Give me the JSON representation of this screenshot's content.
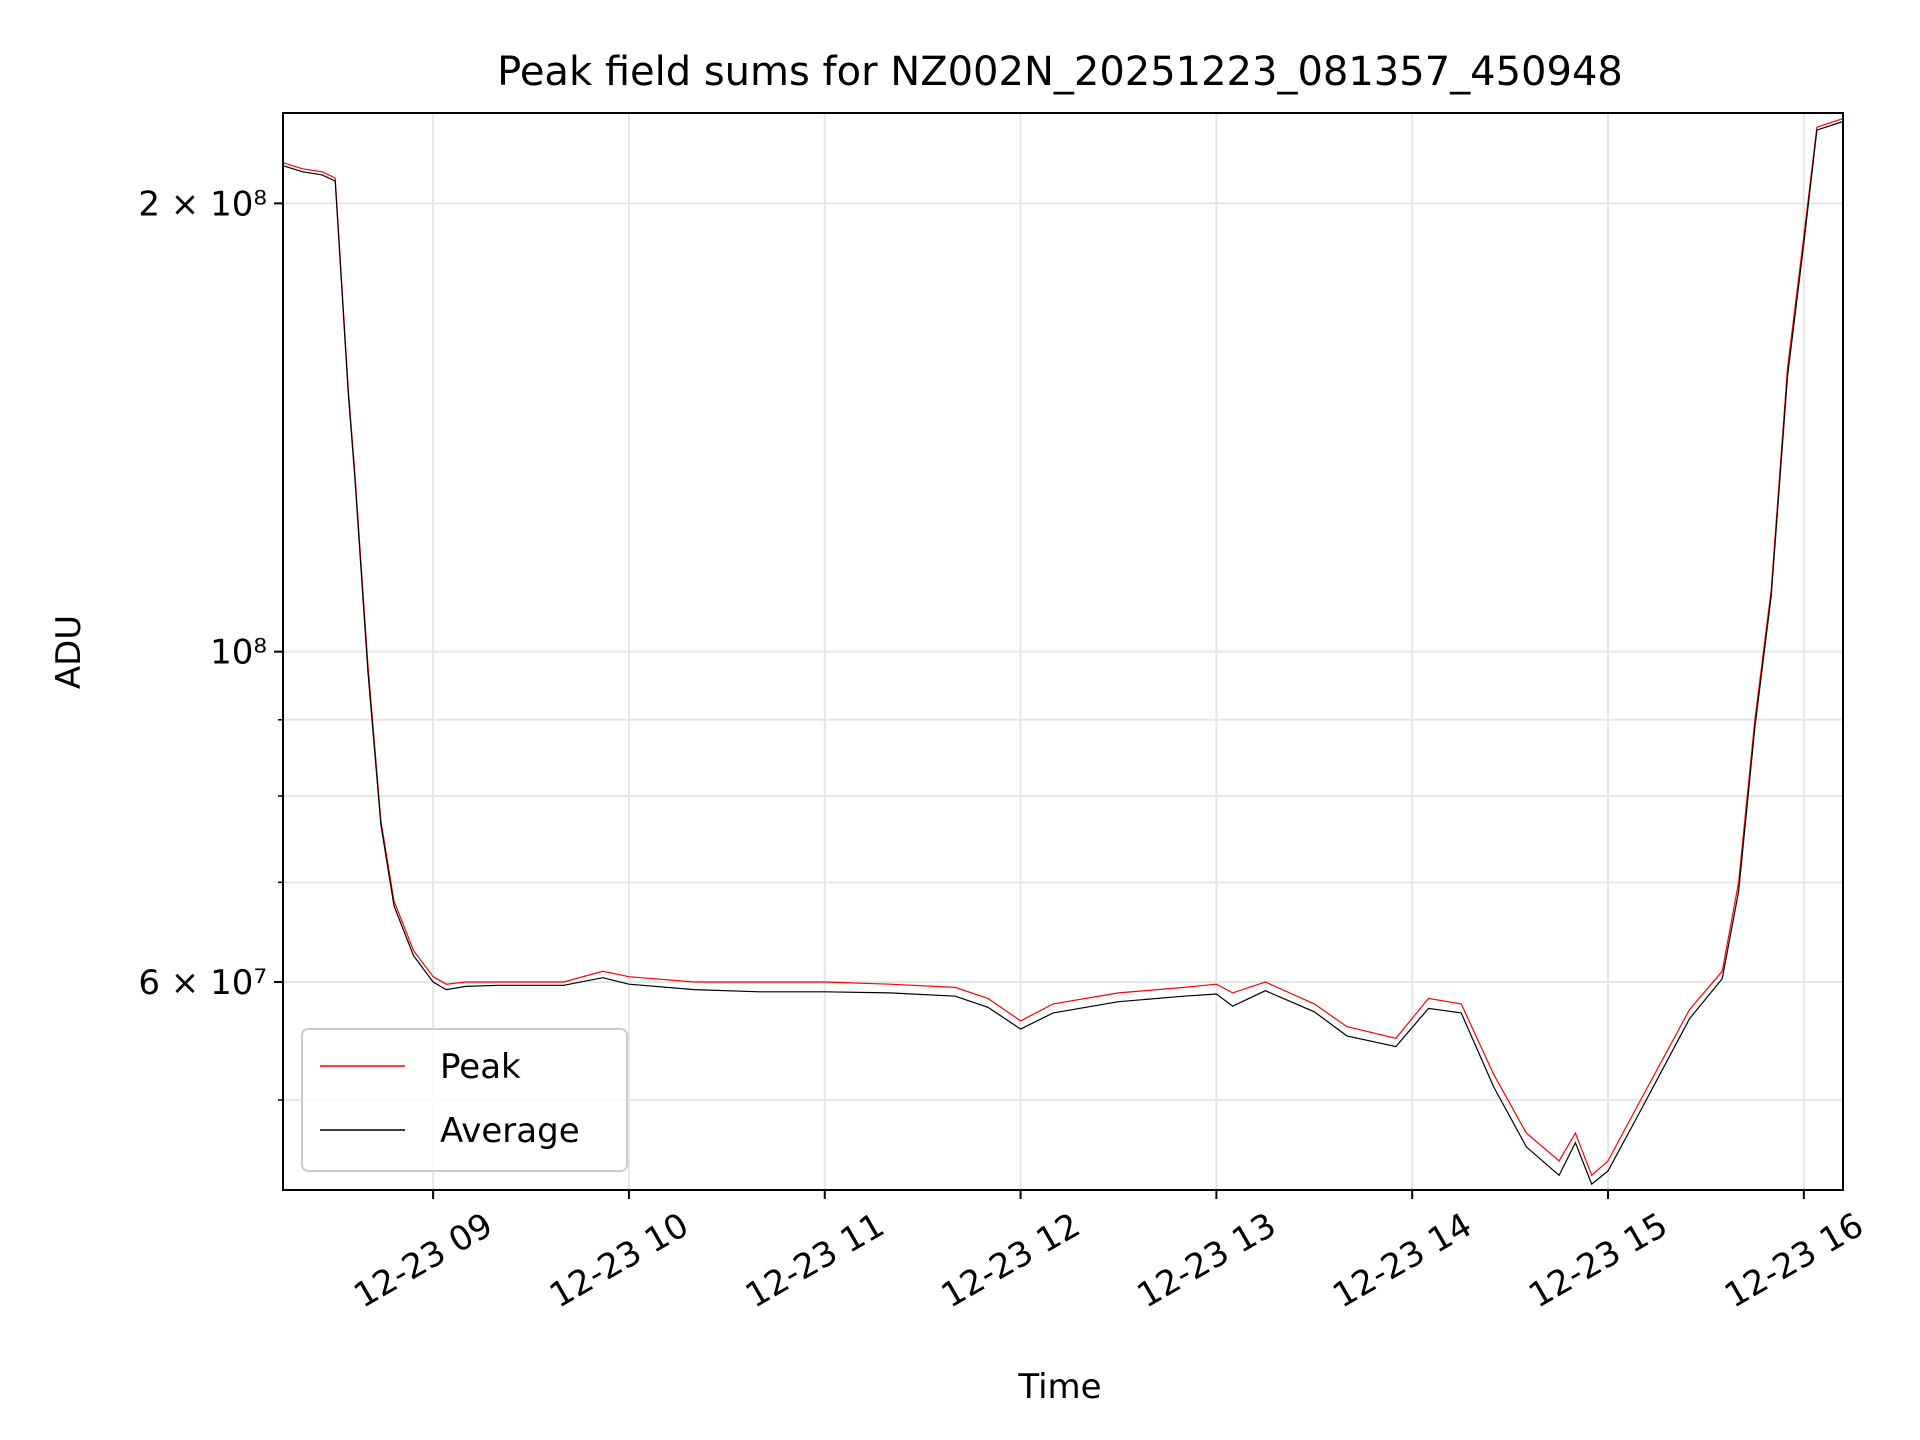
{
  "chart_data": {
    "type": "line",
    "title": "Peak field sums for NZ002N_20251223_081357_450948",
    "xlabel": "Time",
    "ylabel": "ADU",
    "yscale": "log",
    "xlim": [
      "2025-12-23 08:14",
      "2025-12-23 16:12"
    ],
    "ylim": [
      43500000,
      230000000
    ],
    "x_ticks": [
      {
        "label": "12-23 09",
        "value": "2025-12-23 09:00"
      },
      {
        "label": "12-23 10",
        "value": "2025-12-23 10:00"
      },
      {
        "label": "12-23 11",
        "value": "2025-12-23 11:00"
      },
      {
        "label": "12-23 12",
        "value": "2025-12-23 12:00"
      },
      {
        "label": "12-23 13",
        "value": "2025-12-23 13:00"
      },
      {
        "label": "12-23 14",
        "value": "2025-12-23 14:00"
      },
      {
        "label": "12-23 15",
        "value": "2025-12-23 15:00"
      },
      {
        "label": "12-23 16",
        "value": "2025-12-23 16:00"
      }
    ],
    "y_ticks": [
      {
        "label": "2 × 10⁸",
        "value": 200000000
      },
      {
        "label": "10⁸",
        "value": 100000000
      },
      {
        "label": "6 × 10⁷",
        "value": 60000000
      }
    ],
    "y_minor_ticks": [
      50000000,
      70000000,
      80000000,
      90000000
    ],
    "grid": true,
    "legend": "lower-left",
    "series": [
      {
        "name": "Peak",
        "color": "#ff0000",
        "x": [
          "2025-12-23 08:14",
          "2025-12-23 08:20",
          "2025-12-23 08:26",
          "2025-12-23 08:30",
          "2025-12-23 08:34",
          "2025-12-23 08:36",
          "2025-12-23 08:40",
          "2025-12-23 08:44",
          "2025-12-23 08:48",
          "2025-12-23 08:54",
          "2025-12-23 09:00",
          "2025-12-23 09:04",
          "2025-12-23 09:10",
          "2025-12-23 09:20",
          "2025-12-23 09:40",
          "2025-12-23 09:52",
          "2025-12-23 10:00",
          "2025-12-23 10:20",
          "2025-12-23 10:40",
          "2025-12-23 11:00",
          "2025-12-23 11:20",
          "2025-12-23 11:40",
          "2025-12-23 11:50",
          "2025-12-23 12:00",
          "2025-12-23 12:10",
          "2025-12-23 12:30",
          "2025-12-23 12:50",
          "2025-12-23 13:00",
          "2025-12-23 13:05",
          "2025-12-23 13:15",
          "2025-12-23 13:30",
          "2025-12-23 13:40",
          "2025-12-23 13:55",
          "2025-12-23 14:05",
          "2025-12-23 14:15",
          "2025-12-23 14:25",
          "2025-12-23 14:35",
          "2025-12-23 14:45",
          "2025-12-23 14:50",
          "2025-12-23 14:55",
          "2025-12-23 15:00",
          "2025-12-23 15:10",
          "2025-12-23 15:25",
          "2025-12-23 15:35",
          "2025-12-23 15:40",
          "2025-12-23 15:45",
          "2025-12-23 15:50",
          "2025-12-23 15:55",
          "2025-12-23 16:00",
          "2025-12-23 16:04",
          "2025-12-23 16:12"
        ],
        "values": [
          213000000,
          211000000,
          210000000,
          208000000,
          150000000,
          132000000,
          98000000,
          77000000,
          68000000,
          63000000,
          60500000,
          59800000,
          60000000,
          60000000,
          60000000,
          61000000,
          60500000,
          60000000,
          60000000,
          60000000,
          59800000,
          59500000,
          58500000,
          56500000,
          58000000,
          59000000,
          59500000,
          59800000,
          59000000,
          60000000,
          58000000,
          56000000,
          55000000,
          58500000,
          58000000,
          52000000,
          47500000,
          45500000,
          47500000,
          44500000,
          45500000,
          50000000,
          57500000,
          61000000,
          70000000,
          90000000,
          110000000,
          155000000,
          190000000,
          225000000,
          228000000
        ]
      },
      {
        "name": "Average",
        "color": "#000000",
        "x": [
          "2025-12-23 08:14",
          "2025-12-23 08:20",
          "2025-12-23 08:26",
          "2025-12-23 08:30",
          "2025-12-23 08:34",
          "2025-12-23 08:36",
          "2025-12-23 08:40",
          "2025-12-23 08:44",
          "2025-12-23 08:48",
          "2025-12-23 08:54",
          "2025-12-23 09:00",
          "2025-12-23 09:04",
          "2025-12-23 09:10",
          "2025-12-23 09:20",
          "2025-12-23 09:40",
          "2025-12-23 09:52",
          "2025-12-23 10:00",
          "2025-12-23 10:20",
          "2025-12-23 10:40",
          "2025-12-23 11:00",
          "2025-12-23 11:20",
          "2025-12-23 11:40",
          "2025-12-23 11:50",
          "2025-12-23 12:00",
          "2025-12-23 12:10",
          "2025-12-23 12:30",
          "2025-12-23 12:50",
          "2025-12-23 13:00",
          "2025-12-23 13:05",
          "2025-12-23 13:15",
          "2025-12-23 13:30",
          "2025-12-23 13:40",
          "2025-12-23 13:55",
          "2025-12-23 14:05",
          "2025-12-23 14:15",
          "2025-12-23 14:25",
          "2025-12-23 14:35",
          "2025-12-23 14:45",
          "2025-12-23 14:50",
          "2025-12-23 14:55",
          "2025-12-23 15:00",
          "2025-12-23 15:10",
          "2025-12-23 15:25",
          "2025-12-23 15:35",
          "2025-12-23 15:40",
          "2025-12-23 15:45",
          "2025-12-23 15:50",
          "2025-12-23 15:55",
          "2025-12-23 16:00",
          "2025-12-23 16:04",
          "2025-12-23 16:12"
        ],
        "values": [
          212000000,
          210000000,
          209000000,
          207000000,
          149000000,
          131000000,
          97000000,
          76500000,
          67500000,
          62500000,
          60000000,
          59300000,
          59600000,
          59700000,
          59700000,
          60400000,
          59800000,
          59300000,
          59100000,
          59100000,
          59000000,
          58700000,
          57700000,
          55800000,
          57200000,
          58200000,
          58700000,
          58900000,
          57800000,
          59200000,
          57300000,
          55200000,
          54300000,
          57600000,
          57200000,
          51000000,
          46500000,
          44500000,
          46800000,
          43900000,
          44800000,
          49200000,
          56700000,
          60300000,
          69000000,
          89000000,
          109000000,
          153000000,
          188000000,
          224000000,
          227000000
        ]
      }
    ]
  }
}
